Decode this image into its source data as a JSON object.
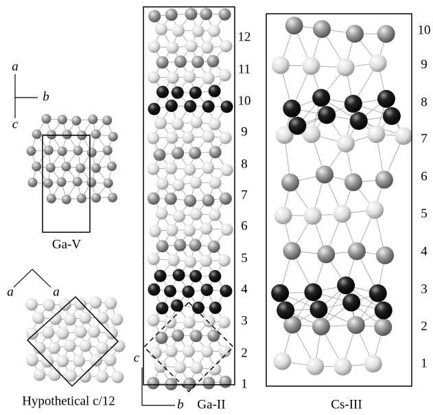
{
  "ga_v": {
    "axes": {
      "a": "a",
      "b": "b",
      "c": "c"
    },
    "label": "Ga-V"
  },
  "hypothetical": {
    "axes": [
      "a",
      "a"
    ],
    "label": "Hypothetical c/12"
  },
  "ga_ii": {
    "axes": {
      "c": "c",
      "b": "b"
    },
    "label": "Ga-II",
    "layers": [
      "1",
      "2",
      "3",
      "4",
      "5",
      "6",
      "7",
      "8",
      "9",
      "10",
      "11",
      "12"
    ]
  },
  "cs_iii": {
    "label": "Cs-III",
    "layers": [
      "1",
      "2",
      "3",
      "4",
      "5",
      "6",
      "7",
      "8",
      "9",
      "10"
    ]
  }
}
